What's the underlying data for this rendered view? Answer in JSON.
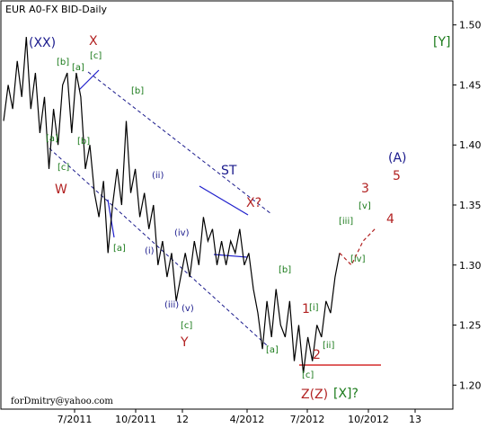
{
  "chart_data": {
    "type": "line",
    "title": "EUR A0-FX BID-Daily",
    "footer": "forDmitry@yahoo.com",
    "x_ticks": [
      "7/2011",
      "10/2011",
      "12",
      "4/2012",
      "7/2012",
      "10/2012",
      "13"
    ],
    "y_ticks": [
      "1.20",
      "1.25",
      "1.30",
      "1.35",
      "1.40",
      "1.45",
      "1.50"
    ],
    "ylim": [
      1.18,
      1.52
    ],
    "series": [
      {
        "points": [
          [
            0,
            1.42
          ],
          [
            1,
            1.45
          ],
          [
            2,
            1.43
          ],
          [
            3,
            1.47
          ],
          [
            4,
            1.44
          ],
          [
            5,
            1.49
          ],
          [
            6,
            1.43
          ],
          [
            7,
            1.46
          ],
          [
            8,
            1.41
          ],
          [
            9,
            1.44
          ],
          [
            10,
            1.38
          ],
          [
            11,
            1.43
          ],
          [
            12,
            1.4
          ],
          [
            13,
            1.45
          ],
          [
            14,
            1.46
          ],
          [
            15,
            1.41
          ],
          [
            16,
            1.46
          ],
          [
            17,
            1.44
          ],
          [
            18,
            1.38
          ],
          [
            19,
            1.4
          ],
          [
            20,
            1.36
          ],
          [
            21,
            1.34
          ],
          [
            22,
            1.37
          ],
          [
            23,
            1.31
          ],
          [
            24,
            1.35
          ],
          [
            25,
            1.38
          ],
          [
            26,
            1.35
          ],
          [
            27,
            1.42
          ],
          [
            28,
            1.36
          ],
          [
            29,
            1.38
          ],
          [
            30,
            1.34
          ],
          [
            31,
            1.36
          ],
          [
            32,
            1.33
          ],
          [
            33,
            1.35
          ],
          [
            34,
            1.3
          ],
          [
            35,
            1.32
          ],
          [
            36,
            1.29
          ],
          [
            37,
            1.31
          ],
          [
            38,
            1.27
          ],
          [
            39,
            1.29
          ],
          [
            40,
            1.31
          ],
          [
            41,
            1.29
          ],
          [
            42,
            1.32
          ],
          [
            43,
            1.3
          ],
          [
            44,
            1.34
          ],
          [
            45,
            1.32
          ],
          [
            46,
            1.33
          ],
          [
            47,
            1.3
          ],
          [
            48,
            1.32
          ],
          [
            49,
            1.3
          ],
          [
            50,
            1.32
          ],
          [
            51,
            1.31
          ],
          [
            52,
            1.33
          ],
          [
            53,
            1.3
          ],
          [
            54,
            1.31
          ],
          [
            55,
            1.28
          ],
          [
            56,
            1.26
          ],
          [
            57,
            1.23
          ],
          [
            58,
            1.27
          ],
          [
            59,
            1.24
          ],
          [
            60,
            1.28
          ],
          [
            61,
            1.25
          ],
          [
            62,
            1.24
          ],
          [
            63,
            1.27
          ],
          [
            64,
            1.22
          ],
          [
            65,
            1.25
          ],
          [
            66,
            1.21
          ],
          [
            67,
            1.24
          ],
          [
            68,
            1.22
          ],
          [
            69,
            1.25
          ],
          [
            70,
            1.24
          ],
          [
            71,
            1.27
          ],
          [
            72,
            1.26
          ],
          [
            73,
            1.29
          ],
          [
            74,
            1.31
          ]
        ]
      }
    ],
    "forecast": {
      "points": [
        [
          74,
          1.31
        ],
        [
          75,
          1.3
        ],
        [
          76,
          1.32
        ],
        [
          77,
          1.33
        ]
      ]
    },
    "annotations": [
      {
        "text": "(XX)",
        "color": "#1a1a8c"
      },
      {
        "text": "X",
        "color": "#b22222"
      },
      {
        "text": "[a]",
        "color": "#1a7a1a"
      },
      {
        "text": "[b]",
        "color": "#1a7a1a"
      },
      {
        "text": "[c]",
        "color": "#1a7a1a"
      },
      {
        "text": "[b]",
        "color": "#1a7a1a"
      },
      {
        "text": "[a]",
        "color": "#1a7a1a"
      },
      {
        "text": "[b]",
        "color": "#1a7a1a"
      },
      {
        "text": "[c]",
        "color": "#1a7a1a"
      },
      {
        "text": "W",
        "color": "#b22222"
      },
      {
        "text": "(ii)",
        "color": "#1a1a8c"
      },
      {
        "text": "[a]",
        "color": "#1a7a1a"
      },
      {
        "text": "(i)",
        "color": "#1a1a8c"
      },
      {
        "text": "(iii)",
        "color": "#1a1a8c"
      },
      {
        "text": "(iv)",
        "color": "#1a1a8c"
      },
      {
        "text": "(v)",
        "color": "#1a1a8c"
      },
      {
        "text": "[c]",
        "color": "#1a7a1a"
      },
      {
        "text": "Y",
        "color": "#b22222"
      },
      {
        "text": "ST",
        "color": "#1a1a8c"
      },
      {
        "text": "X?",
        "color": "#b22222"
      },
      {
        "text": "[b]",
        "color": "#1a7a1a"
      },
      {
        "text": "[a]",
        "color": "#1a7a1a"
      },
      {
        "text": "1",
        "color": "#b22222"
      },
      {
        "text": "[i]",
        "color": "#1a7a1a"
      },
      {
        "text": "2",
        "color": "#b22222"
      },
      {
        "text": "[ii]",
        "color": "#1a7a1a"
      },
      {
        "text": "[c]",
        "color": "#1a7a1a"
      },
      {
        "text": "Z(Z)",
        "color": "#b22222"
      },
      {
        "text": "[X]?",
        "color": "#1a7a1a"
      },
      {
        "text": "[iii]",
        "color": "#1a7a1a"
      },
      {
        "text": "[iv]",
        "color": "#1a7a1a"
      },
      {
        "text": "[v]",
        "color": "#1a7a1a"
      },
      {
        "text": "3",
        "color": "#b22222"
      },
      {
        "text": "4",
        "color": "#b22222"
      },
      {
        "text": "5",
        "color": "#b22222"
      },
      {
        "text": "(A)",
        "color": "#1a1a8c"
      },
      {
        "text": "[Y]",
        "color": "#1a7a1a"
      }
    ],
    "colors": {
      "price": "#000000",
      "channel": "#1a1a8c",
      "forecast": "#b22222",
      "grid": "#999999"
    }
  }
}
